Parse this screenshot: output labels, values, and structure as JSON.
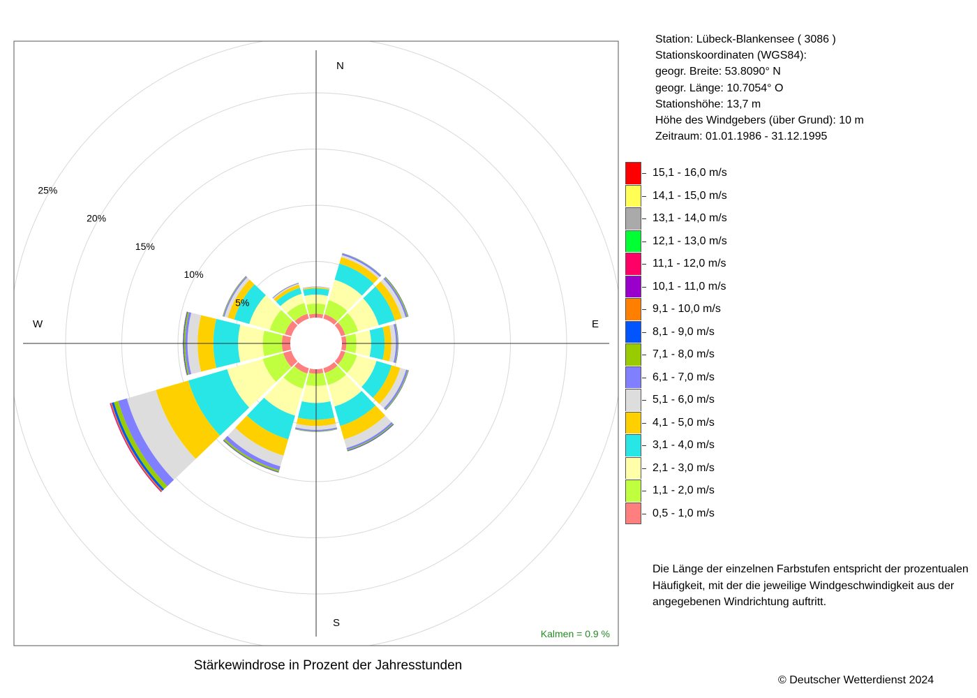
{
  "chart_data": {
    "type": "wind-rose",
    "title": "Stärkewindrose in Prozent der Jahresstunden",
    "radial_unit": "%",
    "ring_labels": [
      "5%",
      "10%",
      "15%",
      "20%",
      "25%"
    ],
    "ring_values": [
      5,
      10,
      15,
      20,
      25
    ],
    "direction_labels": [
      "N",
      "E",
      "S",
      "W"
    ],
    "calm": "Kalmen  =  0.9 %",
    "directions_deg": [
      0,
      30,
      60,
      90,
      120,
      150,
      180,
      210,
      240,
      270,
      300,
      330
    ],
    "speed_classes": [
      {
        "label": "0,5 - 1,0 m/s",
        "color": "#ff7f7f"
      },
      {
        "label": "1,1 - 2,0 m/s",
        "color": "#bfff3f"
      },
      {
        "label": "2,1 - 3,0 m/s",
        "color": "#ffffaa"
      },
      {
        "label": "3,1 - 4,0 m/s",
        "color": "#28e6e6"
      },
      {
        "label": "4,1 - 5,0 m/s",
        "color": "#ffd000"
      },
      {
        "label": "5,1 - 6,0 m/s",
        "color": "#dddddd"
      },
      {
        "label": "6,1 - 7,0 m/s",
        "color": "#7f7fff"
      },
      {
        "label": "7,1 - 8,0 m/s",
        "color": "#99cc00"
      },
      {
        "label": "8,1 - 9,0 m/s",
        "color": "#0055ff"
      },
      {
        "label": "9,1 - 10,0 m/s",
        "color": "#ff8000"
      },
      {
        "label": "10,1 - 11,0 m/s",
        "color": "#9900cc"
      },
      {
        "label": "11,1 - 12,0 m/s",
        "color": "#ff0066"
      },
      {
        "label": "12,1 - 13,0 m/s",
        "color": "#00ff33"
      },
      {
        "label": "13,1 - 14,0 m/s",
        "color": "#aaaaaa"
      },
      {
        "label": "14,1 - 15,0 m/s",
        "color": "#ffff55"
      },
      {
        "label": "15,1 - 16,0 m/s",
        "color": "#ff0000"
      }
    ],
    "series": [
      {
        "direction": 0,
        "values": [
          0.35,
          0.9,
          0.8,
          0.55,
          0.1,
          0.05,
          0.02,
          0,
          0,
          0,
          0,
          0,
          0,
          0,
          0,
          0
        ]
      },
      {
        "direction": 30,
        "values": [
          0.4,
          1.3,
          1.9,
          1.5,
          0.6,
          0.2,
          0.15,
          0.03,
          0.01,
          0,
          0,
          0,
          0,
          0,
          0,
          0
        ]
      },
      {
        "direction": 60,
        "values": [
          0.4,
          1.2,
          1.9,
          1.5,
          0.65,
          0.35,
          0.15,
          0.08,
          0.03,
          0.01,
          0,
          0,
          0,
          0,
          0,
          0
        ]
      },
      {
        "direction": 90,
        "values": [
          0.4,
          0.9,
          1.3,
          1.2,
          0.6,
          0.4,
          0.15,
          0.05,
          0.02,
          0,
          0,
          0,
          0,
          0,
          0,
          0
        ]
      },
      {
        "direction": 120,
        "values": [
          0.4,
          1.1,
          1.8,
          1.4,
          0.8,
          0.55,
          0.15,
          0.06,
          0.03,
          0.01,
          0,
          0,
          0,
          0,
          0,
          0
        ]
      },
      {
        "direction": 150,
        "values": [
          0.45,
          1.1,
          2.0,
          1.8,
          1.25,
          0.8,
          0.15,
          0.08,
          0.05,
          0.02,
          0.01,
          0,
          0,
          0,
          0,
          0
        ]
      },
      {
        "direction": 180,
        "values": [
          0.4,
          1.1,
          1.5,
          1.5,
          0.55,
          0.35,
          0.12,
          0.05,
          0.01,
          0,
          0,
          0,
          0,
          0,
          0,
          0
        ]
      },
      {
        "direction": 210,
        "values": [
          0.5,
          1.4,
          2.5,
          2.2,
          1.5,
          1.0,
          0.35,
          0.15,
          0.05,
          0.02,
          0.01,
          0,
          0,
          0,
          0,
          0
        ]
      },
      {
        "direction": 240,
        "values": [
          0.75,
          1.9,
          3.3,
          3.6,
          3.0,
          2.7,
          0.8,
          0.4,
          0.2,
          0.1,
          0.05,
          0.03,
          0,
          0,
          0,
          0
        ]
      },
      {
        "direction": 270,
        "values": [
          0.75,
          1.7,
          2.2,
          2.2,
          1.4,
          0.9,
          0.2,
          0.12,
          0.06,
          0.03,
          0.01,
          0,
          0,
          0,
          0,
          0
        ]
      },
      {
        "direction": 300,
        "values": [
          0.6,
          1.4,
          1.9,
          1.4,
          0.6,
          0.3,
          0.1,
          0.05,
          0.02,
          0.01,
          0,
          0,
          0,
          0,
          0,
          0
        ]
      },
      {
        "direction": 330,
        "values": [
          0.45,
          1.0,
          0.85,
          0.55,
          0.3,
          0.1,
          0.06,
          0.02,
          0,
          0,
          0,
          0,
          0,
          0,
          0,
          0
        ]
      }
    ]
  },
  "station": {
    "line1": "Station:  Lübeck-Blankensee  ( 3086 )",
    "line2": "Stationskoordinaten (WGS84):",
    "line3": "geogr. Breite: 53.8090° N",
    "line4": "geogr. Länge: 10.7054° O",
    "line5": "Stationshöhe: 13,7 m",
    "line6": "Höhe des Windgebers (über Grund): 10 m",
    "line7": "Zeitraum: 01.01.1986 - 31.12.1995"
  },
  "legend_note": "Die Länge der einzelnen Farbstufen entspricht der prozentualen Häufigkeit, mit der die jeweilige Windgeschwindigkeit aus der angegebenen Windrichtung auftritt.",
  "copyright": "© Deutscher Wetterdienst  2024"
}
